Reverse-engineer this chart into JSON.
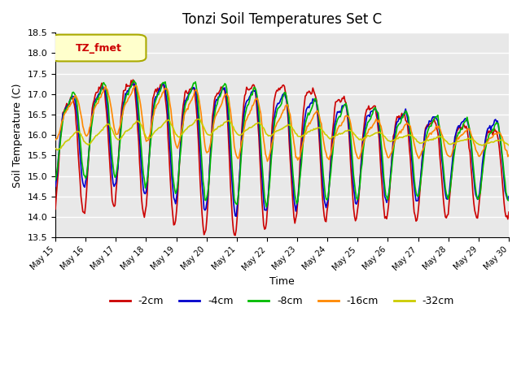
{
  "title": "Tonzi Soil Temperatures Set C",
  "xlabel": "Time",
  "ylabel": "Soil Temperature (C)",
  "ylim": [
    13.5,
    18.5
  ],
  "yticks": [
    13.5,
    14.0,
    14.5,
    15.0,
    15.5,
    16.0,
    16.5,
    17.0,
    17.5,
    18.0,
    18.5
  ],
  "series_colors": [
    "#cc0000",
    "#0000cc",
    "#00bb00",
    "#ff8800",
    "#cccc00"
  ],
  "series_labels": [
    "-2cm",
    "-4cm",
    "-8cm",
    "-16cm",
    "-32cm"
  ],
  "legend_label": "TZ_fmet",
  "legend_box_color": "#ffffcc",
  "legend_box_edge": "#aaaa00",
  "bg_color": "#e8e8e8",
  "grid_color": "#ffffff"
}
